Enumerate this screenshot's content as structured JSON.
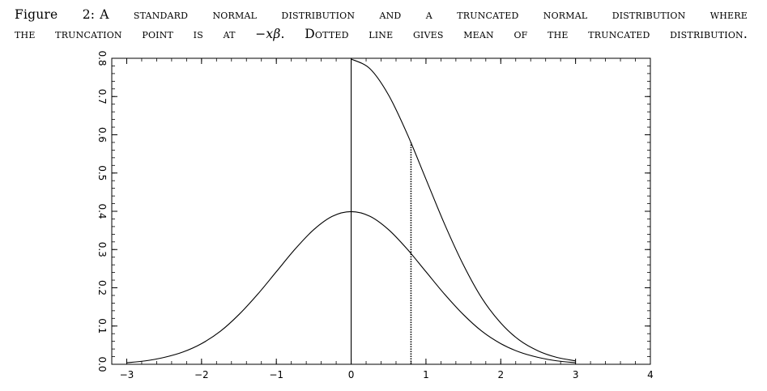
{
  "caption": {
    "label": "Figure 2:",
    "line1": "A standard normal distribution and a truncated normal distribution where",
    "line2_pre": "the truncation point is at ",
    "line2_math": "−xβ",
    "line2_post": ". Dotted line gives mean of the truncated distribution."
  },
  "chart_data": {
    "type": "line",
    "title": "",
    "xlabel": "",
    "ylabel": "",
    "xlim": [
      -3.2,
      4
    ],
    "ylim": [
      0,
      0.8
    ],
    "xticks": [
      -3,
      -2,
      -1,
      0,
      1,
      2,
      3,
      4
    ],
    "xtick_labels": [
      "−3",
      "−2",
      "−1",
      "0",
      "1",
      "2",
      "3",
      "4"
    ],
    "yticks": [
      0,
      0.1,
      0.2,
      0.3,
      0.4,
      0.5,
      0.6,
      0.7,
      0.8
    ],
    "ytick_labels": [
      "0.0",
      "0.1",
      "0.2",
      "0.3",
      "0.4",
      "0.5",
      "0.6",
      "0.7",
      "0.8"
    ],
    "grid": false,
    "legend": "none",
    "series": [
      {
        "style": "solid",
        "x": [
          -3,
          -2.75,
          -2.5,
          -2.25,
          -2,
          -1.75,
          -1.5,
          -1.25,
          -1,
          -0.75,
          -0.5,
          -0.25,
          0,
          0.25,
          0.5,
          0.75,
          1,
          1.25,
          1.5,
          1.75,
          2,
          2.25,
          2.5,
          2.75,
          3
        ],
        "y": [
          0.004,
          0.009,
          0.018,
          0.032,
          0.054,
          0.086,
          0.13,
          0.183,
          0.242,
          0.301,
          0.352,
          0.387,
          0.399,
          0.387,
          0.352,
          0.301,
          0.242,
          0.183,
          0.13,
          0.086,
          0.054,
          0.032,
          0.018,
          0.009,
          0.004
        ]
      },
      {
        "style": "solid",
        "x": [
          0,
          0.25,
          0.5,
          0.75,
          1,
          1.25,
          1.5,
          1.75,
          2,
          2.25,
          2.5,
          2.75,
          3
        ],
        "y": [
          0.798,
          0.773,
          0.704,
          0.602,
          0.484,
          0.366,
          0.26,
          0.172,
          0.108,
          0.063,
          0.035,
          0.018,
          0.009
        ]
      },
      {
        "style": "solid",
        "x": [
          0,
          0
        ],
        "y": [
          0,
          0.8
        ]
      },
      {
        "style": "dotted",
        "x": [
          0.8,
          0.8
        ],
        "y": [
          0,
          0.58
        ]
      }
    ]
  }
}
